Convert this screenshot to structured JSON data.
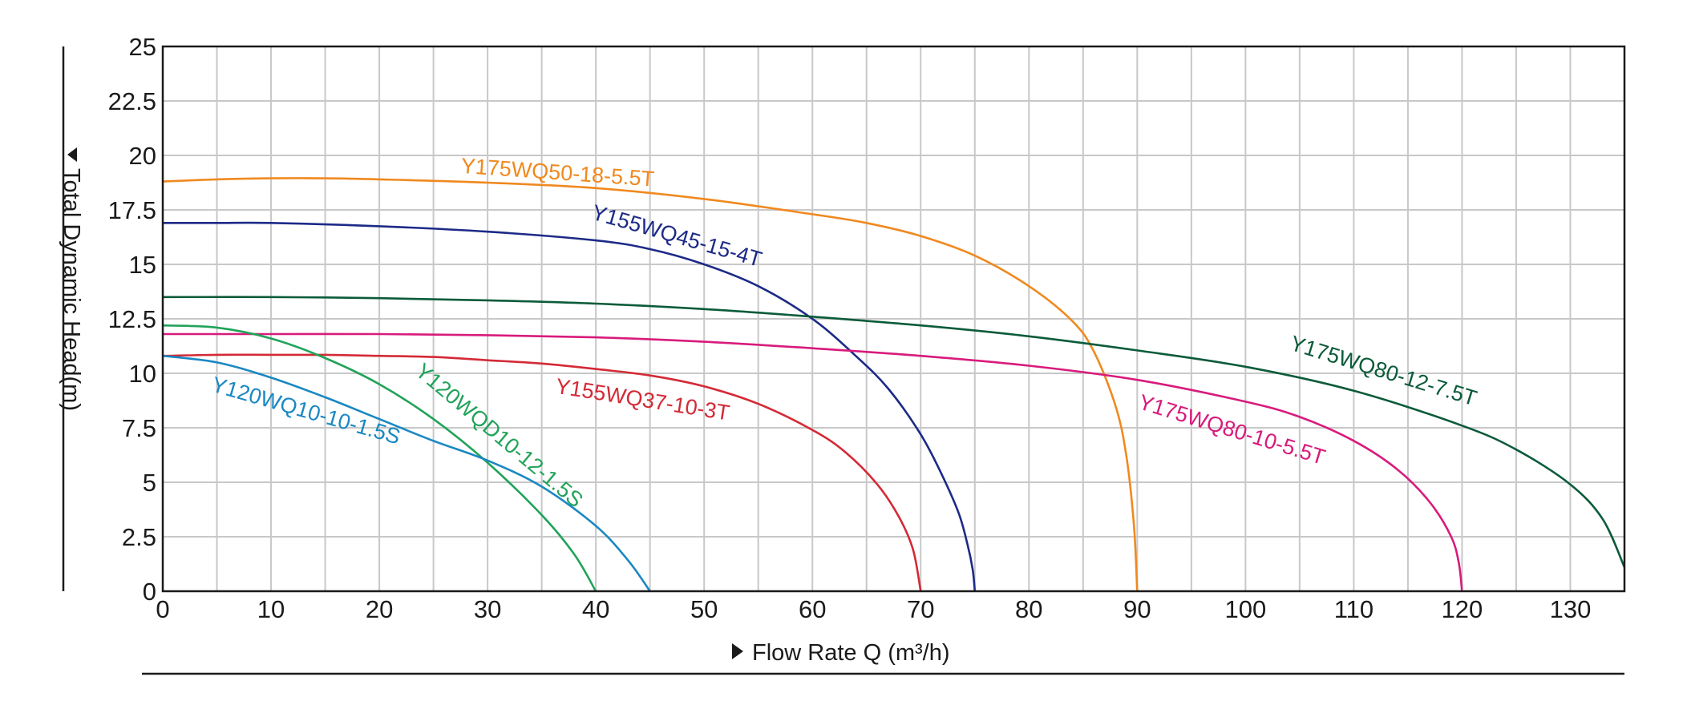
{
  "chart_data": {
    "type": "line",
    "title": "",
    "xlabel": "Flow Rate Q (m³/h)",
    "ylabel": "Total Dynamic Head(m)",
    "xlim": [
      0,
      135
    ],
    "ylim": [
      0,
      25
    ],
    "x_ticks": [
      0,
      10,
      20,
      30,
      40,
      50,
      60,
      70,
      80,
      90,
      100,
      110,
      120,
      130
    ],
    "y_ticks": [
      "0",
      "2.5",
      "5",
      "7.5",
      "10",
      "12.5",
      "15",
      "17.5",
      "20",
      "22.5",
      "25"
    ],
    "grid": true,
    "series": [
      {
        "name": "Y175WQ50-18-5.5T",
        "color": "#f0891f",
        "x": [
          0,
          5,
          10,
          15,
          20,
          30,
          40,
          50,
          60,
          65,
          70,
          75,
          80,
          84,
          86,
          88,
          89,
          89.7,
          90
        ],
        "y": [
          18.8,
          18.9,
          18.95,
          18.95,
          18.9,
          18.75,
          18.5,
          18.0,
          17.3,
          16.9,
          16.3,
          15.4,
          14.0,
          12.4,
          11.0,
          8.5,
          6.2,
          3.0,
          0
        ]
      },
      {
        "name": "Y155WQ45-15-4T",
        "color": "#1c2a87",
        "x": [
          0,
          5,
          10,
          20,
          30,
          40,
          45,
          50,
          55,
          60,
          64,
          67,
          70,
          72,
          73.5,
          74.3,
          74.8,
          75
        ],
        "y": [
          16.9,
          16.9,
          16.9,
          16.75,
          16.5,
          16.1,
          15.7,
          15.0,
          14.0,
          12.5,
          10.8,
          9.3,
          7.2,
          5.3,
          3.6,
          2.2,
          1.0,
          0
        ]
      },
      {
        "name": "Y175WQ80-12-7.5T",
        "color": "#0b5b3a",
        "x": [
          0,
          10,
          20,
          30,
          40,
          50,
          60,
          70,
          80,
          90,
          100,
          110,
          120,
          125,
          130,
          133,
          135
        ],
        "y": [
          13.5,
          13.5,
          13.45,
          13.35,
          13.2,
          12.95,
          12.6,
          12.2,
          11.7,
          11.05,
          10.3,
          9.2,
          7.6,
          6.5,
          4.9,
          3.3,
          1.1
        ]
      },
      {
        "name": "Y175WQ80-10-5.5T",
        "color": "#d81b7c",
        "x": [
          0,
          10,
          20,
          30,
          40,
          50,
          60,
          70,
          80,
          90,
          100,
          105,
          110,
          114,
          117,
          119,
          119.7,
          120
        ],
        "y": [
          11.8,
          11.8,
          11.8,
          11.75,
          11.65,
          11.45,
          11.15,
          10.8,
          10.35,
          9.7,
          8.7,
          8.0,
          6.9,
          5.6,
          4.1,
          2.5,
          1.3,
          0
        ]
      },
      {
        "name": "Y155WQ37-10-3T",
        "color": "#d42a36",
        "x": [
          0,
          5,
          10,
          15,
          20,
          25,
          30,
          35,
          40,
          45,
          50,
          55,
          60,
          63,
          66,
          68,
          69.3,
          70
        ],
        "y": [
          10.8,
          10.85,
          10.85,
          10.85,
          10.8,
          10.75,
          10.6,
          10.45,
          10.2,
          9.9,
          9.4,
          8.6,
          7.4,
          6.4,
          4.9,
          3.4,
          1.9,
          0
        ]
      },
      {
        "name": "Y120WQD10-12-1.5S",
        "color": "#21a35a",
        "x": [
          0,
          5,
          10,
          15,
          20,
          25,
          30,
          35,
          38,
          40
        ],
        "y": [
          12.2,
          12.1,
          11.6,
          10.7,
          9.5,
          7.9,
          5.9,
          3.5,
          1.7,
          0
        ]
      },
      {
        "name": "Y120WQ10-10-1.5S",
        "color": "#1a88c2",
        "x": [
          0,
          5,
          10,
          15,
          20,
          25,
          30,
          35,
          40,
          43,
          45
        ],
        "y": [
          10.8,
          10.5,
          9.8,
          8.9,
          7.9,
          6.9,
          6.0,
          4.8,
          3.0,
          1.4,
          0
        ]
      }
    ]
  }
}
